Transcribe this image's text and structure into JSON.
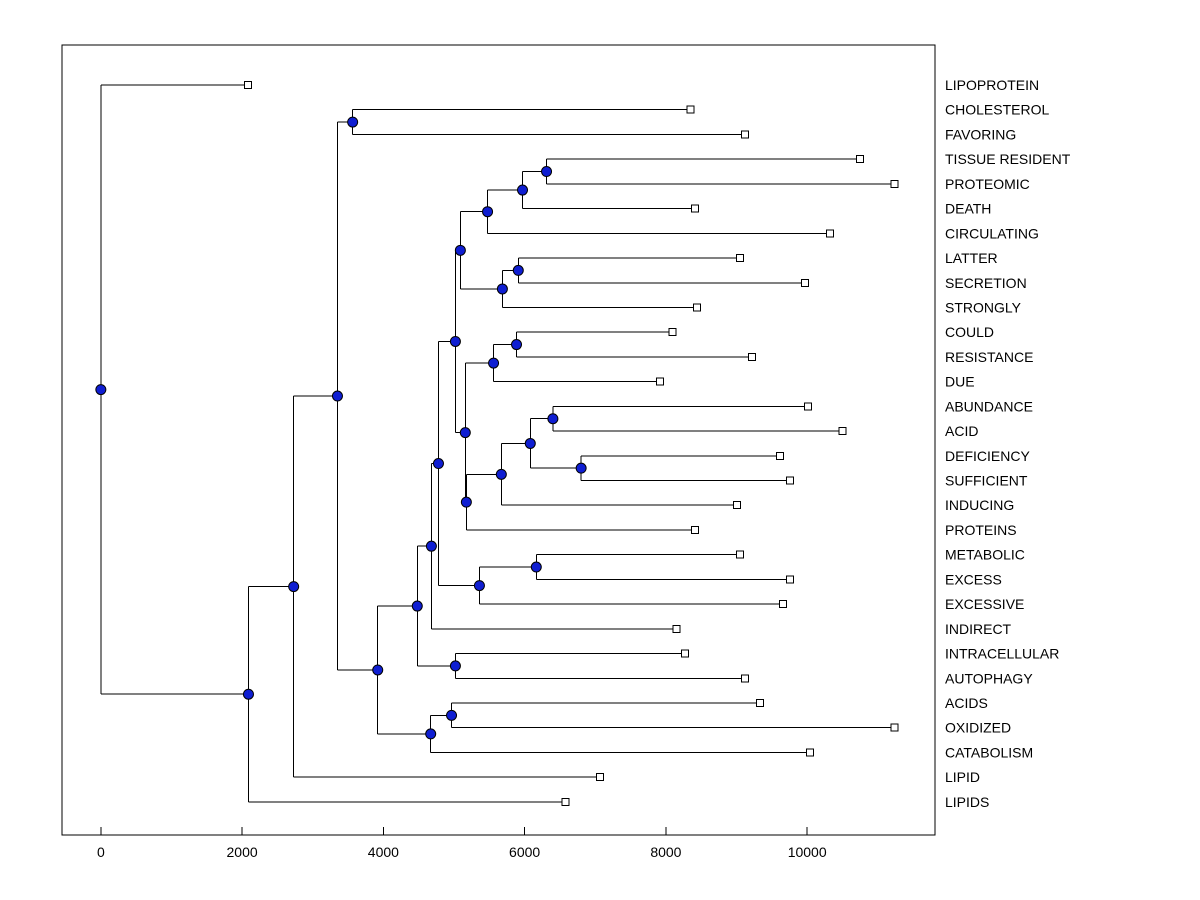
{
  "figure": {
    "background": "#ffffff",
    "colors": {
      "branch": "#000000",
      "internal_node_fill": "#0f1ed2",
      "internal_node_edge": "#000000",
      "leaf_marker_fill": "#ffffff",
      "leaf_marker_edge": "#000000",
      "axis": "#000000",
      "text": "#000000"
    }
  },
  "chart_data": {
    "type": "dendrogram",
    "orientation": "left_to_right",
    "title": "",
    "xlabel": "",
    "ylabel": "",
    "grid": false,
    "legend": false,
    "xlim": [
      -550,
      11810
    ],
    "x_ticks": [
      0,
      2000,
      4000,
      6000,
      8000,
      10000
    ],
    "x_tick_labels": [
      "0",
      "2000",
      "4000",
      "6000",
      "8000",
      "10000"
    ],
    "root_id": "n_root",
    "leaves": [
      {
        "label": "LIPOPROTEIN",
        "value": 2080
      },
      {
        "label": "CHOLESTEROL",
        "value": 8350
      },
      {
        "label": "FAVORING",
        "value": 9120
      },
      {
        "label": "TISSUE RESIDENT",
        "value": 10750
      },
      {
        "label": "PROTEOMIC",
        "value": 11240
      },
      {
        "label": "DEATH",
        "value": 8415
      },
      {
        "label": "CIRCULATING",
        "value": 10320
      },
      {
        "label": "LATTER",
        "value": 9050
      },
      {
        "label": "SECRETION",
        "value": 9970
      },
      {
        "label": "STRONGLY",
        "value": 8440
      },
      {
        "label": "COULD",
        "value": 8090
      },
      {
        "label": "RESISTANCE",
        "value": 9220
      },
      {
        "label": "DUE",
        "value": 7920
      },
      {
        "label": "ABUNDANCE",
        "value": 10010
      },
      {
        "label": "ACID",
        "value": 10500
      },
      {
        "label": "DEFICIENCY",
        "value": 9615
      },
      {
        "label": "SUFFICIENT",
        "value": 9760
      },
      {
        "label": "INDUCING",
        "value": 9010
      },
      {
        "label": "PROTEINS",
        "value": 8415
      },
      {
        "label": "METABOLIC",
        "value": 9050
      },
      {
        "label": "EXCESS",
        "value": 9760
      },
      {
        "label": "EXCESSIVE",
        "value": 9660
      },
      {
        "label": "INDIRECT",
        "value": 8150
      },
      {
        "label": "INTRACELLULAR",
        "value": 8270
      },
      {
        "label": "AUTOPHAGY",
        "value": 9120
      },
      {
        "label": "ACIDS",
        "value": 9330
      },
      {
        "label": "OXIDIZED",
        "value": 11240
      },
      {
        "label": "CATABOLISM",
        "value": 10040
      },
      {
        "label": "LIPID",
        "value": 7070
      },
      {
        "label": "LIPIDS",
        "value": 6580
      }
    ],
    "nodes": [
      {
        "id": "n_tissue_proteomic",
        "value": 6310,
        "children": [
          "TISSUE RESIDENT",
          "PROTEOMIC"
        ]
      },
      {
        "id": "n_death",
        "value": 5970,
        "children": [
          "n_tissue_proteomic",
          "DEATH"
        ]
      },
      {
        "id": "n_circulating",
        "value": 5475,
        "children": [
          "n_death",
          "CIRCULATING"
        ]
      },
      {
        "id": "n_latter_secretion",
        "value": 5910,
        "children": [
          "LATTER",
          "SECRETION"
        ]
      },
      {
        "id": "n_strongly",
        "value": 5685,
        "children": [
          "n_latter_secretion",
          "STRONGLY"
        ]
      },
      {
        "id": "n_upper_cluster",
        "value": 5090,
        "children": [
          "n_circulating",
          "n_strongly"
        ]
      },
      {
        "id": "n_could_resistance",
        "value": 5885,
        "children": [
          "COULD",
          "RESISTANCE"
        ]
      },
      {
        "id": "n_due",
        "value": 5560,
        "children": [
          "n_could_resistance",
          "DUE"
        ]
      },
      {
        "id": "n_abundance_acid",
        "value": 6400,
        "children": [
          "ABUNDANCE",
          "ACID"
        ]
      },
      {
        "id": "n_deficiency_sufficient",
        "value": 6800,
        "children": [
          "DEFICIENCY",
          "SUFFICIENT"
        ]
      },
      {
        "id": "n_acid_cluster",
        "value": 6080,
        "children": [
          "n_abundance_acid",
          "n_deficiency_sufficient"
        ]
      },
      {
        "id": "n_inducing",
        "value": 5670,
        "children": [
          "n_acid_cluster",
          "INDUCING"
        ]
      },
      {
        "id": "n_proteins",
        "value": 5175,
        "children": [
          "n_inducing",
          "PROTEINS"
        ]
      },
      {
        "id": "n_mid_cluster",
        "value": 5160,
        "children": [
          "n_due",
          "n_proteins"
        ]
      },
      {
        "id": "n_top_mid",
        "value": 5020,
        "children": [
          "n_upper_cluster",
          "n_mid_cluster"
        ]
      },
      {
        "id": "n_metabolic_excess",
        "value": 6165,
        "children": [
          "METABOLIC",
          "EXCESS"
        ]
      },
      {
        "id": "n_excessive",
        "value": 5360,
        "children": [
          "n_metabolic_excess",
          "EXCESSIVE"
        ]
      },
      {
        "id": "n_core",
        "value": 4780,
        "children": [
          "n_top_mid",
          "n_excessive"
        ]
      },
      {
        "id": "n_indirect",
        "value": 4680,
        "children": [
          "n_core",
          "INDIRECT"
        ]
      },
      {
        "id": "n_intracellular_autophagy",
        "value": 5020,
        "children": [
          "INTRACELLULAR",
          "AUTOPHAGY"
        ]
      },
      {
        "id": "n_cell",
        "value": 4480,
        "children": [
          "n_indirect",
          "n_intracellular_autophagy"
        ]
      },
      {
        "id": "n_acids_oxidized",
        "value": 4965,
        "children": [
          "ACIDS",
          "OXIDIZED"
        ]
      },
      {
        "id": "n_catabolism",
        "value": 4670,
        "children": [
          "n_acids_oxidized",
          "CATABOLISM"
        ]
      },
      {
        "id": "n_main",
        "value": 3920,
        "children": [
          "n_cell",
          "n_catabolism"
        ]
      },
      {
        "id": "n_cholesterol_favoring",
        "value": 3565,
        "children": [
          "CHOLESTEROL",
          "FAVORING"
        ]
      },
      {
        "id": "n_d",
        "value": 3350,
        "children": [
          "n_cholesterol_favoring",
          "n_main"
        ]
      },
      {
        "id": "n_lipid",
        "value": 2730,
        "children": [
          "n_d",
          "LIPID"
        ]
      },
      {
        "id": "n_lipids",
        "value": 2090,
        "children": [
          "n_lipid",
          "LIPIDS"
        ]
      },
      {
        "id": "n_root",
        "value": 0,
        "children": [
          "LIPOPROTEIN",
          "n_lipids"
        ]
      }
    ]
  }
}
